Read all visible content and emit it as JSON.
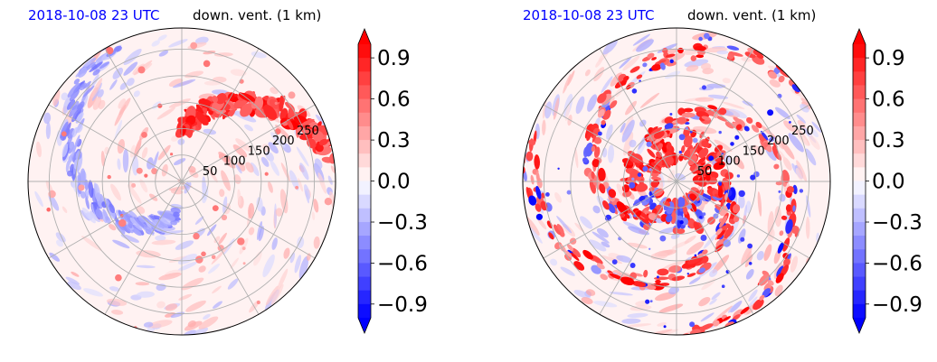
{
  "panels": [
    {
      "date": "2018-10-08 23 UTC",
      "title": "down. vent. (1 km)",
      "rlabels": [
        "50",
        "100",
        "150",
        "200",
        "250"
      ]
    },
    {
      "date": "2018-10-08 23 UTC",
      "title": "down. vent. (1 km)",
      "rlabels": [
        "50",
        "100",
        "150",
        "200",
        "250"
      ]
    }
  ],
  "colors": {
    "date": "#0000ff",
    "positive": "#ff0000",
    "negative": "#0000ff",
    "grid": "#b0b0b0"
  },
  "chart_data": [
    {
      "type": "heatmap",
      "projection": "polar",
      "r_ticks": [
        50,
        100,
        150,
        200,
        250
      ],
      "colorbar": {
        "ticks": [
          "0.9",
          "0.6",
          "0.3",
          "0.0",
          "−0.3",
          "−0.6",
          "−0.9"
        ],
        "range": [
          -1.0,
          1.0
        ],
        "extend": "both",
        "colormap": "bwr"
      },
      "dominant_pattern": "positive spiral band in the inner north-east quadrant, weak negative streaks to the south-west"
    },
    {
      "type": "heatmap",
      "projection": "polar",
      "r_ticks": [
        50,
        100,
        150,
        200,
        250
      ],
      "colorbar": {
        "ticks": [
          "0.9",
          "0.6",
          "0.3",
          "0.0",
          "−0.3",
          "−0.6",
          "−0.9"
        ],
        "range": [
          -1.0,
          1.0
        ],
        "extend": "both",
        "colormap": "bwr"
      },
      "dominant_pattern": "positive spiral rainbands wrapping the center, negative cells along the inner eyewall"
    }
  ]
}
